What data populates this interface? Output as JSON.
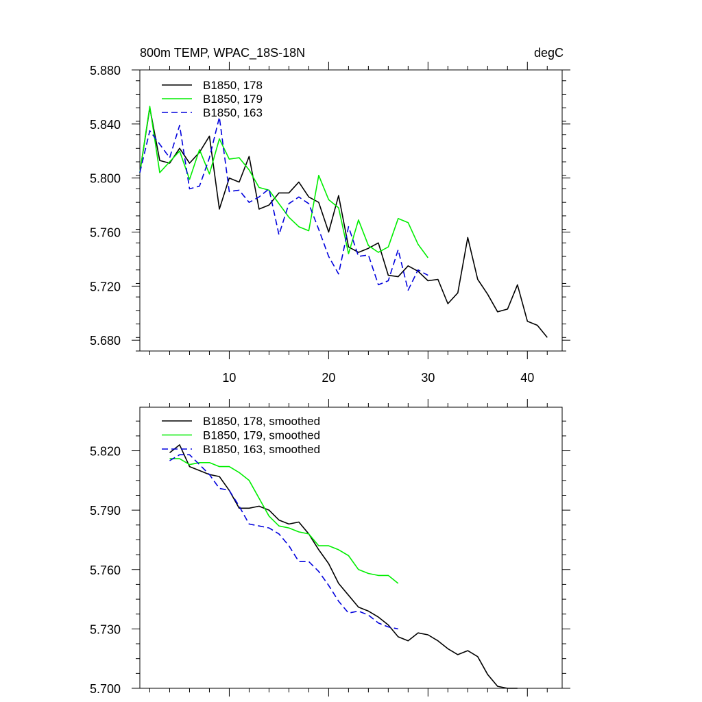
{
  "chart_data": [
    {
      "type": "line",
      "title_left": "800m TEMP, WPAC_18S-18N",
      "title_right": "degC",
      "xlabel": "",
      "ylabel": "",
      "xlim": [
        1,
        43.5
      ],
      "ylim": [
        5.672,
        5.88
      ],
      "x_major_ticks": [
        10,
        20,
        30,
        40
      ],
      "x_tick_labels": [
        "10",
        "20",
        "30",
        "40"
      ],
      "y_major_ticks": [
        5.68,
        5.72,
        5.76,
        5.8,
        5.84,
        5.88
      ],
      "y_tick_labels": [
        "5.680",
        "5.720",
        "5.760",
        "5.800",
        "5.840",
        "5.880"
      ],
      "legend_position": "top-left",
      "series": [
        {
          "name": "B1850, 178",
          "color": "#000000",
          "dash": "solid",
          "x": [
            1,
            2,
            3,
            4,
            5,
            6,
            7,
            8,
            9,
            10,
            11,
            12,
            13,
            14,
            15,
            16,
            17,
            18,
            19,
            20,
            21,
            22,
            23,
            24,
            25,
            26,
            27,
            28,
            29,
            30,
            31,
            32,
            33,
            34,
            35,
            36,
            37,
            38,
            39,
            40,
            41,
            42
          ],
          "y": [
            5.804,
            5.852,
            5.813,
            5.811,
            5.822,
            5.811,
            5.819,
            5.831,
            5.777,
            5.8,
            5.797,
            5.816,
            5.777,
            5.78,
            5.789,
            5.789,
            5.797,
            5.786,
            5.782,
            5.76,
            5.787,
            5.749,
            5.745,
            5.748,
            5.752,
            5.728,
            5.727,
            5.735,
            5.731,
            5.724,
            5.725,
            5.707,
            5.715,
            5.756,
            5.725,
            5.714,
            5.701,
            5.703,
            5.721,
            5.694,
            5.691,
            5.682
          ]
        },
        {
          "name": "B1850, 179",
          "color": "#00ee00",
          "dash": "solid",
          "x": [
            1,
            2,
            3,
            4,
            5,
            6,
            7,
            8,
            9,
            10,
            11,
            12,
            13,
            14,
            15,
            16,
            17,
            18,
            19,
            20,
            21,
            22,
            23,
            24,
            25,
            26,
            27,
            28,
            29,
            30
          ],
          "y": [
            5.804,
            5.853,
            5.804,
            5.812,
            5.82,
            5.799,
            5.821,
            5.803,
            5.829,
            5.814,
            5.815,
            5.806,
            5.793,
            5.791,
            5.781,
            5.771,
            5.764,
            5.761,
            5.802,
            5.784,
            5.778,
            5.744,
            5.769,
            5.75,
            5.745,
            5.749,
            5.77,
            5.767,
            5.751,
            5.741
          ]
        },
        {
          "name": "B1850, 163",
          "color": "#0000dd",
          "dash": "dashed",
          "x": [
            1,
            2,
            3,
            4,
            5,
            6,
            7,
            8,
            9,
            10,
            11,
            12,
            13,
            14,
            15,
            16,
            17,
            18,
            19,
            20,
            21,
            22,
            23,
            24,
            25,
            26,
            27,
            28,
            29,
            30
          ],
          "y": [
            5.804,
            5.835,
            5.825,
            5.815,
            5.839,
            5.792,
            5.794,
            5.815,
            5.845,
            5.79,
            5.791,
            5.782,
            5.786,
            5.792,
            5.758,
            5.781,
            5.786,
            5.781,
            5.762,
            5.742,
            5.729,
            5.764,
            5.742,
            5.743,
            5.721,
            5.724,
            5.747,
            5.717,
            5.732,
            5.728
          ]
        }
      ]
    },
    {
      "type": "line",
      "xlabel": "",
      "ylabel": "",
      "xlim": [
        1,
        43.5
      ],
      "ylim": [
        5.7,
        5.842
      ],
      "x_major_ticks": [
        10,
        20,
        30,
        40
      ],
      "x_tick_labels": [],
      "y_major_ticks": [
        5.7,
        5.73,
        5.76,
        5.79,
        5.82
      ],
      "y_tick_labels": [
        "5.700",
        "5.730",
        "5.760",
        "5.790",
        "5.820"
      ],
      "legend_position": "top-left",
      "series": [
        {
          "name": "B1850, 178, smoothed",
          "color": "#000000",
          "dash": "solid",
          "x": [
            4,
            5,
            6,
            7,
            8,
            9,
            10,
            11,
            12,
            13,
            14,
            15,
            16,
            17,
            18,
            19,
            20,
            21,
            22,
            23,
            24,
            25,
            26,
            27,
            28,
            29,
            30,
            31,
            32,
            33,
            34,
            35,
            36,
            37,
            38,
            39
          ],
          "y": [
            5.819,
            5.823,
            5.812,
            5.81,
            5.808,
            5.807,
            5.8,
            5.791,
            5.791,
            5.792,
            5.79,
            5.785,
            5.783,
            5.784,
            5.778,
            5.77,
            5.763,
            5.753,
            5.747,
            5.741,
            5.739,
            5.736,
            5.732,
            5.726,
            5.724,
            5.728,
            5.727,
            5.724,
            5.72,
            5.717,
            5.719,
            5.716,
            5.707,
            5.701,
            5.7,
            5.7
          ]
        },
        {
          "name": "B1850, 179, smoothed",
          "color": "#00ee00",
          "dash": "solid",
          "x": [
            4,
            5,
            6,
            7,
            8,
            9,
            10,
            11,
            12,
            13,
            14,
            15,
            16,
            17,
            18,
            19,
            20,
            21,
            22,
            23,
            24,
            25,
            26,
            27
          ],
          "y": [
            5.816,
            5.816,
            5.813,
            5.814,
            5.814,
            5.812,
            5.812,
            5.809,
            5.805,
            5.796,
            5.787,
            5.782,
            5.781,
            5.779,
            5.778,
            5.772,
            5.772,
            5.77,
            5.767,
            5.76,
            5.758,
            5.757,
            5.757,
            5.753
          ]
        },
        {
          "name": "B1850, 163, smoothed",
          "color": "#0000dd",
          "dash": "dashed",
          "x": [
            4,
            5,
            6,
            7,
            8,
            9,
            10,
            11,
            12,
            13,
            14,
            15,
            16,
            17,
            18,
            19,
            20,
            21,
            22,
            23,
            24,
            25,
            26,
            27
          ],
          "y": [
            5.815,
            5.818,
            5.818,
            5.813,
            5.808,
            5.801,
            5.8,
            5.792,
            5.783,
            5.782,
            5.781,
            5.778,
            5.772,
            5.764,
            5.764,
            5.759,
            5.752,
            5.744,
            5.738,
            5.739,
            5.737,
            5.733,
            5.731,
            5.73
          ]
        }
      ]
    }
  ]
}
